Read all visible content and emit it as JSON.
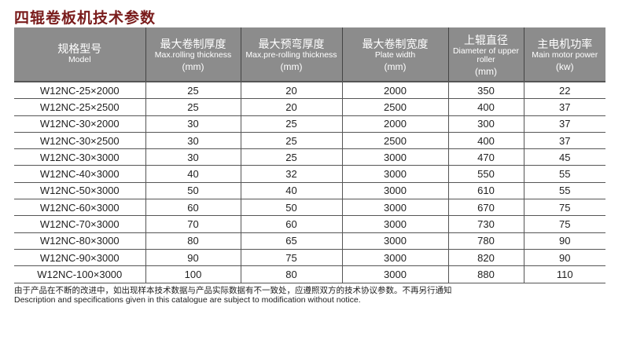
{
  "title": "四辊卷板机技术参数",
  "headers": [
    {
      "cn": "规格型号",
      "en": "Model",
      "unit": ""
    },
    {
      "cn": "最大卷制厚度",
      "en": "Max.rolling thickness",
      "unit": "(mm)"
    },
    {
      "cn": "最大预弯厚度",
      "en": "Max.pre-rolling thickness",
      "unit": "(mm)"
    },
    {
      "cn": "最大卷制宽度",
      "en": "Plate width",
      "unit": "(mm)"
    },
    {
      "cn": "上辊直径",
      "en": "Diameter of upper roller",
      "unit": "(mm)"
    },
    {
      "cn": "主电机功率",
      "en": "Main motor power",
      "unit": "(kw)"
    }
  ],
  "rows": [
    [
      "W12NC-25×2000",
      "25",
      "20",
      "2000",
      "350",
      "22"
    ],
    [
      "W12NC-25×2500",
      "25",
      "20",
      "2500",
      "400",
      "37"
    ],
    [
      "W12NC-30×2000",
      "30",
      "25",
      "2000",
      "300",
      "37"
    ],
    [
      "W12NC-30×2500",
      "30",
      "25",
      "2500",
      "400",
      "37"
    ],
    [
      "W12NC-30×3000",
      "30",
      "25",
      "3000",
      "470",
      "45"
    ],
    [
      "W12NC-40×3000",
      "40",
      "32",
      "3000",
      "550",
      "55"
    ],
    [
      "W12NC-50×3000",
      "50",
      "40",
      "3000",
      "610",
      "55"
    ],
    [
      "W12NC-60×3000",
      "60",
      "50",
      "3000",
      "670",
      "75"
    ],
    [
      "W12NC-70×3000",
      "70",
      "60",
      "3000",
      "730",
      "75"
    ],
    [
      "W12NC-80×3000",
      "80",
      "65",
      "3000",
      "780",
      "90"
    ],
    [
      "W12NC-90×3000",
      "90",
      "75",
      "3000",
      "820",
      "90"
    ],
    [
      "W12NC-100×3000",
      "100",
      "80",
      "3000",
      "880",
      "110"
    ]
  ],
  "note_cn": "由于产品在不断的改进中，如出现样本技术数据与产品实际数据有不一致处，应遵照双方的技术协议参数。不再另行通知",
  "note_en": "Description and specifications given in this catalogue are subject to modification without notice."
}
